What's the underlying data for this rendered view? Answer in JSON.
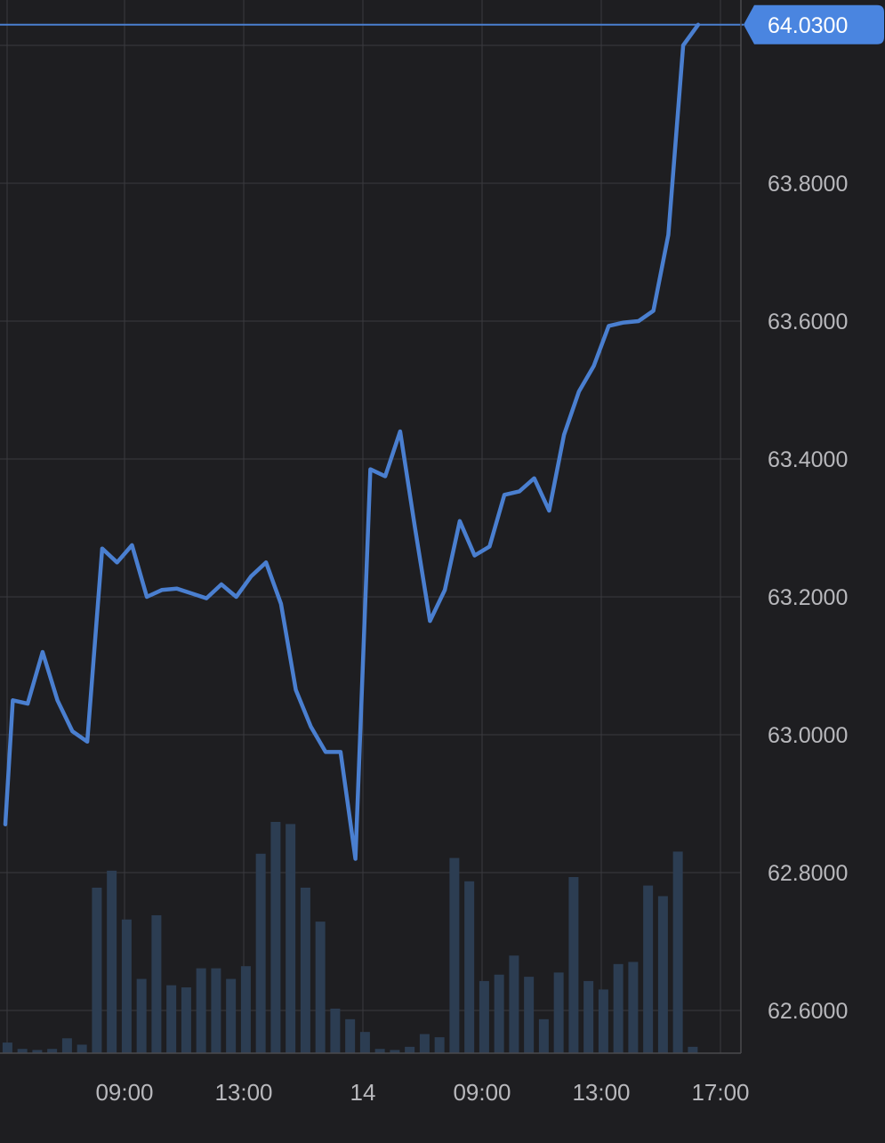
{
  "chart_data": {
    "type": "line",
    "title": "",
    "xlabel": "",
    "ylabel": "",
    "ylim": [
      62.55,
      64.03
    ],
    "grid": true,
    "x_ticks": [
      {
        "label": "09:00",
        "t": 8
      },
      {
        "label": "13:00",
        "t": 16
      },
      {
        "label": "14",
        "t": 24
      },
      {
        "label": "09:00",
        "t": 32
      },
      {
        "label": "13:00",
        "t": 40
      },
      {
        "label": "17:00",
        "t": 48
      }
    ],
    "y_ticks": [
      "62.6000",
      "62.8000",
      "63.0000",
      "63.2000",
      "63.4000",
      "63.6000",
      "63.8000"
    ],
    "last_price": {
      "value": 64.03,
      "label": "64.0300"
    },
    "colors": {
      "line": "#4a7fd0",
      "badge": "#4a85e0",
      "volume": "#2c3d52",
      "grid": "#3a3a3e",
      "axis_text": "#b8b8bc"
    },
    "series": [
      {
        "x": [
          0,
          0.5,
          1.5,
          2.5,
          3.5,
          4.5,
          5.5,
          6.5,
          7.5,
          8.5,
          9.5,
          10.5,
          11.5,
          12.5,
          13.5,
          14.5,
          15.5,
          16.5,
          17.5,
          18.5,
          19.5,
          20.5,
          21.5,
          22.5,
          23.5,
          24.5,
          25.5,
          26.5,
          27.5,
          28.5,
          29.5,
          30.5,
          31.5,
          32.5,
          33.5,
          34.5,
          35.5,
          36.5,
          37.5,
          38.5,
          39.5,
          40.5,
          41.5,
          42.5,
          43.5,
          44.5,
          45.5,
          46.5
        ],
        "values": [
          62.87,
          63.05,
          63.045,
          63.12,
          63.05,
          63.005,
          62.99,
          63.27,
          63.25,
          63.275,
          63.2,
          63.21,
          63.212,
          63.205,
          63.198,
          63.218,
          63.2,
          63.23,
          63.25,
          63.19,
          63.065,
          63.012,
          62.975,
          62.975,
          62.82,
          63.385,
          63.375,
          63.44,
          63.3,
          63.165,
          63.21,
          63.31,
          63.26,
          63.273,
          63.348,
          63.353,
          63.372,
          63.325,
          63.435,
          63.498,
          63.535,
          63.593,
          63.598,
          63.6,
          63.615,
          63.725,
          64.0,
          64.03
        ]
      },
      {
        "name": "",
        "x": [
          0,
          1,
          2,
          3,
          4,
          5,
          6,
          7,
          8,
          9,
          10,
          11,
          12,
          13,
          14,
          15,
          16,
          17,
          18,
          19,
          20,
          21,
          22,
          23,
          24,
          25,
          26,
          27,
          28,
          29,
          30,
          31,
          32,
          33,
          34,
          35,
          36,
          37,
          38,
          39,
          40,
          41,
          42,
          43,
          44,
          45,
          46
        ],
        "values": [
          0.5,
          0.2,
          0.15,
          0.2,
          0.7,
          0.4,
          7.8,
          8.6,
          6.3,
          3.5,
          6.5,
          3.2,
          3.1,
          4.0,
          4.0,
          3.5,
          4.1,
          9.4,
          10.9,
          10.8,
          7.8,
          6.2,
          2.1,
          1.6,
          1.0,
          0.2,
          0.15,
          0.3,
          0.9,
          0.75,
          9.2,
          8.1,
          3.4,
          3.7,
          4.6,
          3.6,
          1.6,
          3.8,
          8.3,
          3.4,
          3.0,
          4.2,
          4.3,
          7.9,
          7.4,
          9.5,
          0.3
        ]
      }
    ]
  }
}
